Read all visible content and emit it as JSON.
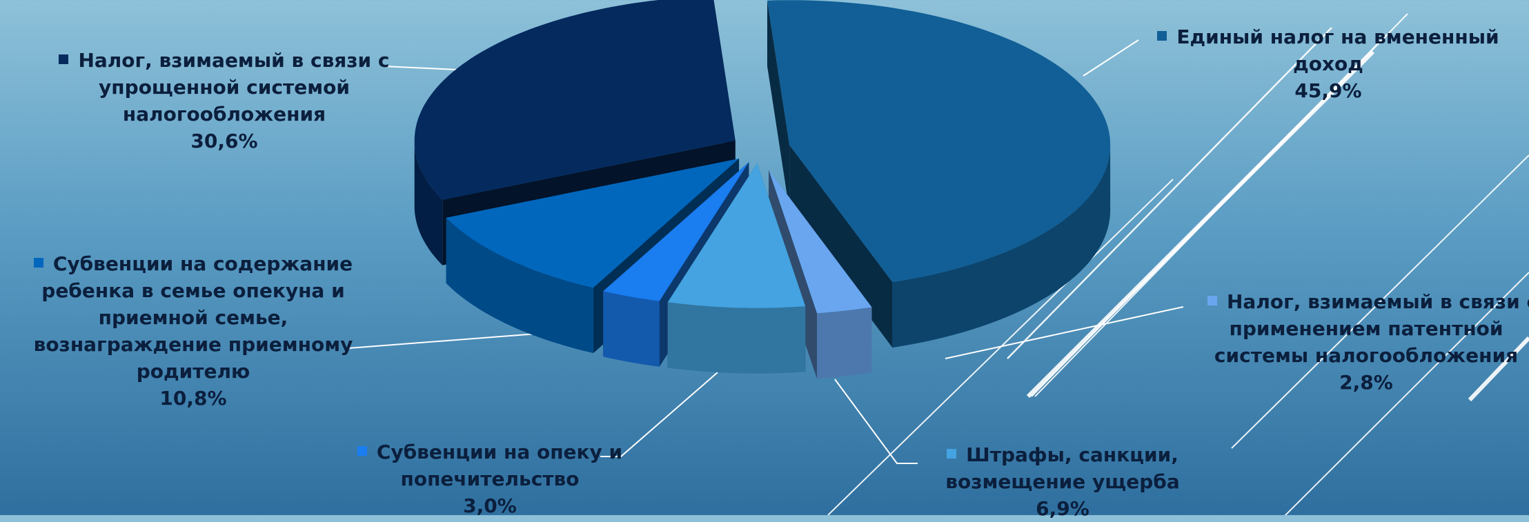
{
  "colors": {
    "background_top": "#8ec1d9",
    "background_bottom": "#2f6f9f",
    "label_text": "#0b1f3d",
    "leader_line": "#ffffff"
  },
  "chart_data": {
    "type": "pie",
    "style": "3d-exploded",
    "title": "",
    "legend": "none",
    "slices": [
      {
        "name": "Единый налог на вмененный доход",
        "label_lines": [
          "Единый налог на вмененный",
          "доход"
        ],
        "value": 45.9,
        "value_label": "45,9%",
        "color": "#115f96"
      },
      {
        "name": "Налог, взимаемый в связи с применением патентной системы налогообложения",
        "label_lines": [
          "Налог, взимаемый в связи с",
          "применением патентной",
          "системы налогообложения"
        ],
        "value": 2.8,
        "value_label": "2,8%",
        "color": "#6aa6f0"
      },
      {
        "name": "Штрафы, санкции, возмещение ущерба",
        "label_lines": [
          "Штрафы, санкции,",
          "возмещение ущерба"
        ],
        "value": 6.9,
        "value_label": "6,9%",
        "color": "#44a3e0"
      },
      {
        "name": "Субвенции на опеку и попечительство",
        "label_lines": [
          "Субвенции на опеку и",
          "попечительство"
        ],
        "value": 3.0,
        "value_label": "3,0%",
        "color": "#1a7df0"
      },
      {
        "name": "Субвенции на содержание ребенка в семье опекуна и приемной семье, вознаграждение приемному родителю",
        "label_lines": [
          "Субвенции на содержание",
          "ребенка в семье опекуна и",
          "приемной семье,",
          "вознаграждение приемному",
          "родителю"
        ],
        "value": 10.8,
        "value_label": "10,8%",
        "color": "#0067bd"
      },
      {
        "name": "Налог, взимаемый в связи с упрощенной системой налогообложения",
        "label_lines": [
          "Налог, взимаемый в связи с",
          "упрощенной системой",
          "налогообложения"
        ],
        "value": 30.6,
        "value_label": "30,6%",
        "color": "#042a5e"
      }
    ]
  }
}
